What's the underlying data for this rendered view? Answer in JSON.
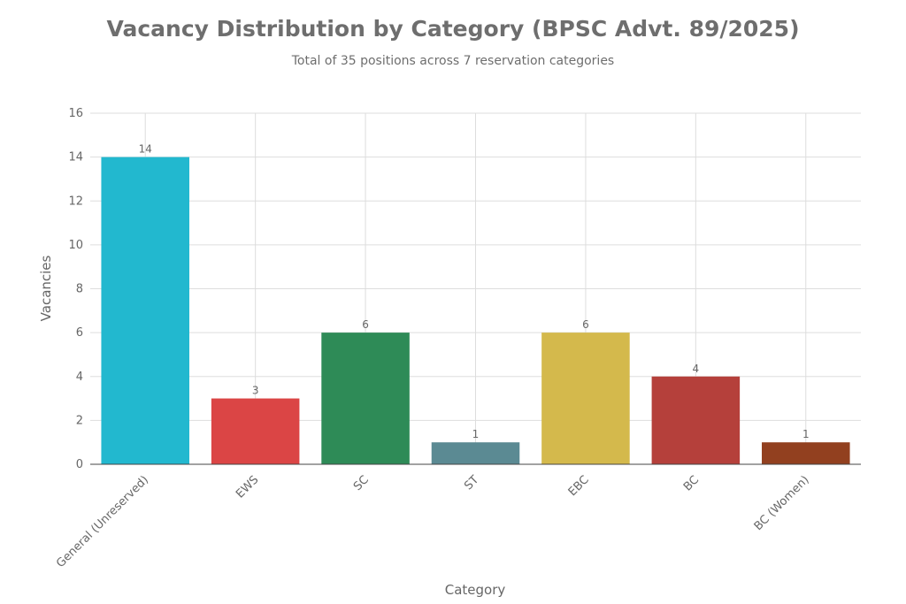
{
  "chart_data": {
    "type": "bar",
    "title": "Vacancy Distribution by Category (BPSC Advt. 89/2025)",
    "subtitle": "Total of 35 positions across 7 reservation categories",
    "xlabel": "Category",
    "ylabel": "Vacancies",
    "categories": [
      "General (Unreserved)",
      "EWS",
      "SC",
      "ST",
      "EBC",
      "BC",
      "BC (Women)"
    ],
    "values": [
      14,
      3,
      6,
      1,
      6,
      4,
      1
    ],
    "data_labels": [
      "14",
      "3",
      "6",
      "1",
      "6",
      "4",
      "1"
    ],
    "colors": [
      "#22b8cf",
      "#db4545",
      "#2e8b57",
      "#5b8a93",
      "#d4b94c",
      "#b5403b",
      "#92401f"
    ],
    "ylim": [
      0,
      16
    ],
    "yticks": [
      0,
      2,
      4,
      6,
      8,
      10,
      12,
      14,
      16
    ],
    "grid": true,
    "legend": "none"
  }
}
